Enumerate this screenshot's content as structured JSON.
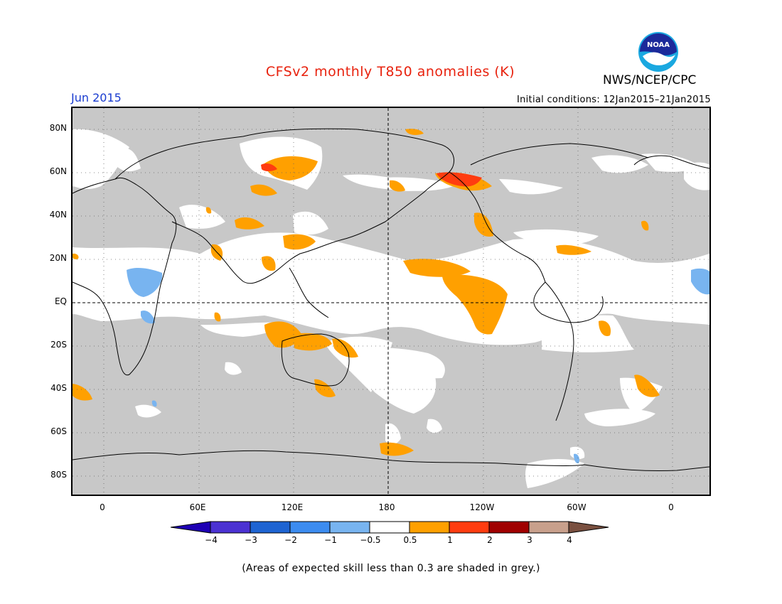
{
  "header": {
    "title": "CFSv2 monthly T850 anomalies (K)",
    "agency": "NWS/NCEP/CPC",
    "period": "Jun 2015",
    "initial_conditions": "Initial conditions: 12Jan2015–21Jan2015",
    "logo_text": "NOAA"
  },
  "map": {
    "lat_labels": [
      "80N",
      "60N",
      "40N",
      "20N",
      "EQ",
      "20S",
      "40S",
      "60S",
      "80S"
    ],
    "lon_labels": [
      "0",
      "60E",
      "120E",
      "180",
      "120W",
      "60W",
      "0"
    ],
    "colors": {
      "grey_low_skill": "#c8c8c8",
      "neutral": "#ffffff",
      "warm_0_5_1": "#ffa000",
      "warm_1_2": "#ff3c10",
      "cool_neg1_neg0_5": "#78b4f0"
    }
  },
  "colorbar": {
    "labels": [
      "−4",
      "−3",
      "−2",
      "−1",
      "−0.5",
      "0.5",
      "1",
      "2",
      "3",
      "4"
    ],
    "colors": [
      "#1e00b4",
      "#4b32d2",
      "#1e64d2",
      "#3c8cf0",
      "#78b4f0",
      "#ffffff",
      "#ffa000",
      "#ff3c10",
      "#a00000",
      "#c8a08c",
      "#7a5040"
    ]
  },
  "footnote": "(Areas of expected skill less than 0.3 are shaded in grey.)"
}
